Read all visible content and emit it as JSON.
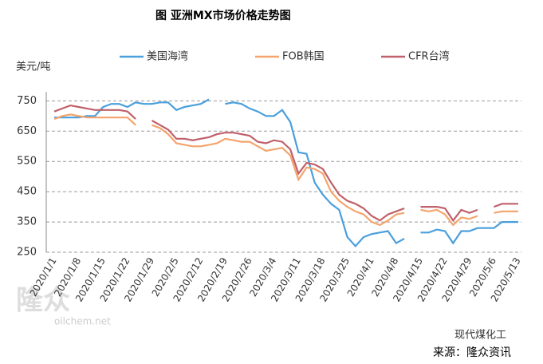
{
  "chart_data": {
    "type": "line",
    "title": "图  亚洲MX市场价格走势图",
    "y_label": "美元/吨",
    "source": "来源：隆众资讯",
    "signature": "现代煤化工",
    "watermark": [
      "隆众",
      "oilchem.net"
    ],
    "categories": [
      "2020/1/1",
      null,
      null,
      "2020/1/8",
      null,
      null,
      "2020/1/15",
      null,
      null,
      "2020/1/22",
      null,
      null,
      "2020/1/29",
      null,
      null,
      "2020/2/5",
      null,
      null,
      "2020/2/12",
      null,
      null,
      "2020/2/19",
      null,
      null,
      "2020/2/26",
      null,
      null,
      "2020/3/4",
      null,
      null,
      "2020/3/11",
      null,
      null,
      "2020/3/18",
      null,
      null,
      "2020/3/25",
      null,
      null,
      "2020/4/1",
      null,
      null,
      "2020/4/8",
      null,
      null,
      "2020/4/15",
      null,
      null,
      "2020/4/22",
      null,
      null,
      "2020/4/29",
      null,
      null,
      "2020/5/6",
      null,
      null,
      "2020/5/13"
    ],
    "series": [
      {
        "name": "美国海湾",
        "color": "#4a9fdd",
        "values": [
          695,
          695,
          695,
          695,
          700,
          700,
          730,
          740,
          740,
          730,
          745,
          740,
          740,
          745,
          745,
          720,
          730,
          735,
          740,
          755,
          null,
          740,
          745,
          740,
          725,
          715,
          700,
          700,
          720,
          680,
          580,
          575,
          480,
          440,
          410,
          390,
          300,
          270,
          300,
          310,
          315,
          320,
          280,
          295,
          null,
          315,
          315,
          325,
          320,
          280,
          320,
          320,
          330,
          330,
          330,
          350,
          350,
          350
        ]
      },
      {
        "name": "FOB韩国",
        "color": "#f4a46c",
        "values": [
          690,
          700,
          705,
          700,
          695,
          695,
          695,
          695,
          695,
          695,
          670,
          null,
          670,
          660,
          640,
          610,
          605,
          600,
          600,
          605,
          610,
          625,
          620,
          615,
          615,
          600,
          585,
          590,
          595,
          570,
          490,
          530,
          525,
          510,
          450,
          420,
          400,
          385,
          375,
          350,
          340,
          355,
          375,
          380,
          null,
          390,
          385,
          390,
          375,
          340,
          365,
          360,
          370,
          null,
          380,
          385,
          385,
          385
        ]
      },
      {
        "name": "CFR台湾",
        "color": "#c0606a",
        "values": [
          715,
          725,
          735,
          730,
          725,
          720,
          720,
          720,
          720,
          715,
          690,
          null,
          685,
          670,
          655,
          625,
          625,
          620,
          625,
          630,
          640,
          645,
          645,
          640,
          635,
          615,
          610,
          620,
          615,
          590,
          510,
          545,
          540,
          525,
          480,
          440,
          420,
          410,
          395,
          370,
          355,
          375,
          385,
          395,
          null,
          400,
          400,
          400,
          395,
          355,
          390,
          380,
          390,
          null,
          400,
          410,
          410,
          410
        ]
      }
    ],
    "ylim": [
      250,
      780
    ],
    "yticks": [
      250,
      350,
      450,
      550,
      650,
      750
    ],
    "grid": true
  }
}
